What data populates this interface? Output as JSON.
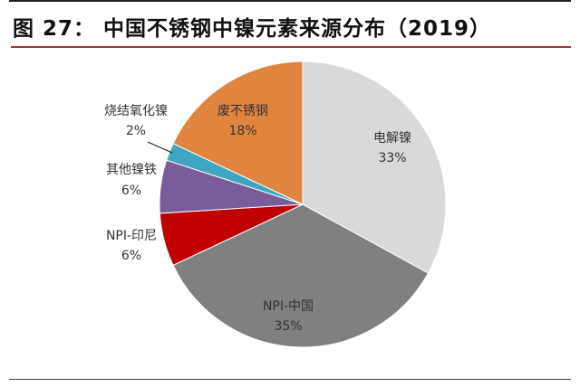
{
  "title": "图 27： 中国不锈钢中镍元素来源分布（2019）",
  "chart_data": {
    "type": "pie",
    "title": "图 27： 中国不锈钢中镍元素来源分布（2019）",
    "start": "top",
    "direction": "clockwise",
    "slices": [
      {
        "name": "电解镍",
        "value": 33,
        "label": "33%",
        "color": "#d9d9d9"
      },
      {
        "name": "NPI-中国",
        "value": 35,
        "label": "35%",
        "color": "#808080"
      },
      {
        "name": "NPI-印尼",
        "value": 6,
        "label": "6%",
        "color": "#c00000"
      },
      {
        "name": "其他镍铁",
        "value": 6,
        "label": "6%",
        "color": "#7a5c9a"
      },
      {
        "name": "烧结氧化镍",
        "value": 2,
        "label": "2%",
        "color": "#3ea6c0"
      },
      {
        "name": "废不锈钢",
        "value": 18,
        "label": "18%",
        "color": "#e0843e"
      }
    ]
  }
}
